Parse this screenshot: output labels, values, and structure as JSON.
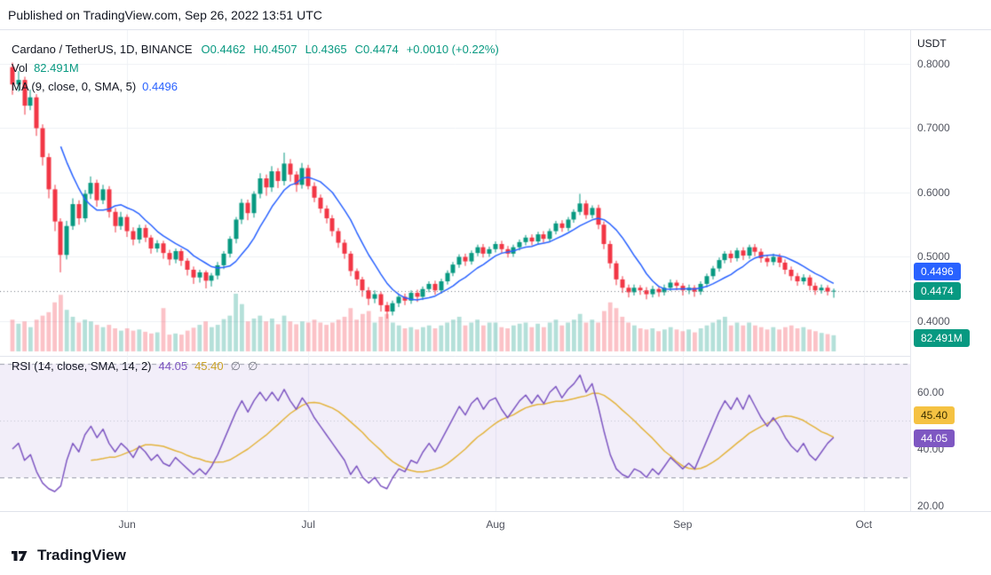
{
  "publish_bar": {
    "text": "Published on TradingView.com, Sep 26, 2022 13:51 UTC"
  },
  "header": {
    "symbol_title": "Cardano / TetherUS, 1D, BINANCE",
    "ohlc": [
      {
        "label": "O",
        "value": "0.4462"
      },
      {
        "label": "H",
        "value": "0.4507"
      },
      {
        "label": "L",
        "value": "0.4365"
      },
      {
        "label": "C",
        "value": "0.4474"
      }
    ],
    "change": "+0.0010 (+0.22%)",
    "volume": {
      "label": "Vol",
      "value": "82.491M"
    },
    "ma": {
      "label": "MA (9, close, 0, SMA, 5)",
      "value": "0.4496"
    }
  },
  "rsi_header": {
    "label": "RSI (14, close, SMA, 14, 2)",
    "value": "44.05",
    "ma_value": "45.40",
    "empty_1": "∅",
    "empty_2": "∅"
  },
  "price_axis": {
    "unit": "USDT",
    "ticks": [
      "0.8000",
      "0.7000",
      "0.6000",
      "0.5000",
      "0.4000"
    ],
    "badges": [
      {
        "name": "ma-price",
        "label": "0.4496",
        "bg": "#2962ff",
        "fg": "#ffffff"
      },
      {
        "name": "last-price",
        "label": "0.4474",
        "bg": "#089981",
        "fg": "#ffffff"
      },
      {
        "name": "volume",
        "label": "82.491M",
        "bg": "#089981",
        "fg": "#ffffff"
      }
    ],
    "rsi_ticks": [
      "60.00",
      "40.00",
      "20.00"
    ],
    "rsi_badges": [
      {
        "name": "rsi-ma",
        "label": "45.40",
        "bg": "#f5c242",
        "fg": "#3b2f00"
      },
      {
        "name": "rsi",
        "label": "44.05",
        "bg": "#7e57c2",
        "fg": "#ffffff"
      }
    ]
  },
  "time_axis": {
    "labels": [
      "Jun",
      "Jul",
      "Aug",
      "Sep",
      "Oct"
    ]
  },
  "footer": {
    "brand": "TradingView"
  },
  "colors": {
    "up": "#089981",
    "down": "#f23645",
    "volume_up": "rgba(8,153,129,0.30)",
    "volume_down": "rgba(242,54,69,0.30)",
    "ma_line": "#2962ff",
    "rsi_line": "#7e57c2",
    "rsi_ma_line": "#e3b33c",
    "rsi_band_fill": "rgba(126,87,194,0.10)",
    "rsi_band_border": "#9b9eab",
    "grid": "#eef0f5",
    "last_price_line": "#787b86",
    "pane_separator": "#e0e3eb"
  },
  "chart_data": {
    "type": "candlestick",
    "title": "Cardano / TetherUS, 1D, BINANCE",
    "ohlc_last": {
      "open": 0.4462,
      "high": 0.4507,
      "low": 0.4365,
      "close": 0.4474,
      "change": "+0.0010 (+0.22%)"
    },
    "volume_last": "82.491M",
    "price_ticks": [
      0.8,
      0.7,
      0.6,
      0.5,
      0.4
    ],
    "last_close": 0.4474,
    "ma_period": 9,
    "ma_last": 0.4496,
    "month_labels": [
      "Jun",
      "Jul",
      "Aug",
      "Sep",
      "Oct"
    ],
    "month_tick_indices": [
      19,
      49,
      80,
      111,
      141
    ],
    "total_slots": 148,
    "candles": [
      [
        0.795,
        0.802,
        0.752,
        0.768
      ],
      [
        0.768,
        0.789,
        0.757,
        0.775
      ],
      [
        0.775,
        0.78,
        0.721,
        0.735
      ],
      [
        0.735,
        0.76,
        0.728,
        0.748
      ],
      [
        0.748,
        0.753,
        0.688,
        0.7
      ],
      [
        0.7,
        0.706,
        0.642,
        0.655
      ],
      [
        0.655,
        0.661,
        0.591,
        0.605
      ],
      [
        0.605,
        0.612,
        0.54,
        0.555
      ],
      [
        0.555,
        0.56,
        0.476,
        0.503
      ],
      [
        0.503,
        0.556,
        0.496,
        0.548
      ],
      [
        0.548,
        0.591,
        0.542,
        0.582
      ],
      [
        0.582,
        0.588,
        0.55,
        0.56
      ],
      [
        0.56,
        0.604,
        0.554,
        0.598
      ],
      [
        0.598,
        0.625,
        0.59,
        0.615
      ],
      [
        0.615,
        0.62,
        0.578,
        0.588
      ],
      [
        0.588,
        0.612,
        0.582,
        0.605
      ],
      [
        0.605,
        0.61,
        0.561,
        0.57
      ],
      [
        0.57,
        0.576,
        0.538,
        0.548
      ],
      [
        0.548,
        0.57,
        0.542,
        0.562
      ],
      [
        0.562,
        0.566,
        0.531,
        0.54
      ],
      [
        0.54,
        0.546,
        0.518,
        0.527
      ],
      [
        0.527,
        0.55,
        0.521,
        0.545
      ],
      [
        0.545,
        0.55,
        0.523,
        0.53
      ],
      [
        0.53,
        0.534,
        0.505,
        0.513
      ],
      [
        0.513,
        0.526,
        0.507,
        0.521
      ],
      [
        0.521,
        0.525,
        0.497,
        0.506
      ],
      [
        0.506,
        0.511,
        0.487,
        0.496
      ],
      [
        0.496,
        0.513,
        0.49,
        0.509
      ],
      [
        0.509,
        0.513,
        0.486,
        0.494
      ],
      [
        0.494,
        0.498,
        0.471,
        0.48
      ],
      [
        0.48,
        0.485,
        0.458,
        0.468
      ],
      [
        0.468,
        0.48,
        0.46,
        0.476
      ],
      [
        0.476,
        0.479,
        0.451,
        0.463
      ],
      [
        0.463,
        0.475,
        0.454,
        0.471
      ],
      [
        0.471,
        0.492,
        0.465,
        0.487
      ],
      [
        0.487,
        0.509,
        0.481,
        0.505
      ],
      [
        0.505,
        0.532,
        0.499,
        0.528
      ],
      [
        0.528,
        0.562,
        0.521,
        0.558
      ],
      [
        0.558,
        0.59,
        0.551,
        0.584
      ],
      [
        0.584,
        0.589,
        0.557,
        0.568
      ],
      [
        0.568,
        0.602,
        0.561,
        0.598
      ],
      [
        0.598,
        0.63,
        0.591,
        0.622
      ],
      [
        0.622,
        0.628,
        0.595,
        0.608
      ],
      [
        0.608,
        0.641,
        0.601,
        0.633
      ],
      [
        0.633,
        0.638,
        0.607,
        0.618
      ],
      [
        0.618,
        0.662,
        0.611,
        0.645
      ],
      [
        0.645,
        0.652,
        0.617,
        0.628
      ],
      [
        0.628,
        0.633,
        0.601,
        0.612
      ],
      [
        0.612,
        0.646,
        0.606,
        0.638
      ],
      [
        0.638,
        0.643,
        0.605,
        0.61
      ],
      [
        0.61,
        0.616,
        0.585,
        0.592
      ],
      [
        0.592,
        0.597,
        0.568,
        0.575
      ],
      [
        0.575,
        0.58,
        0.552,
        0.56
      ],
      [
        0.56,
        0.565,
        0.532,
        0.54
      ],
      [
        0.54,
        0.545,
        0.514,
        0.522
      ],
      [
        0.522,
        0.527,
        0.497,
        0.505
      ],
      [
        0.505,
        0.509,
        0.47,
        0.478
      ],
      [
        0.478,
        0.482,
        0.455,
        0.465
      ],
      [
        0.465,
        0.469,
        0.438,
        0.448
      ],
      [
        0.448,
        0.453,
        0.425,
        0.435
      ],
      [
        0.435,
        0.448,
        0.428,
        0.442
      ],
      [
        0.442,
        0.446,
        0.415,
        0.425
      ],
      [
        0.425,
        0.43,
        0.404,
        0.415
      ],
      [
        0.415,
        0.432,
        0.409,
        0.428
      ],
      [
        0.428,
        0.442,
        0.422,
        0.438
      ],
      [
        0.438,
        0.443,
        0.425,
        0.432
      ],
      [
        0.432,
        0.448,
        0.427,
        0.444
      ],
      [
        0.444,
        0.449,
        0.43,
        0.438
      ],
      [
        0.438,
        0.454,
        0.433,
        0.45
      ],
      [
        0.45,
        0.462,
        0.445,
        0.458
      ],
      [
        0.458,
        0.463,
        0.441,
        0.448
      ],
      [
        0.448,
        0.466,
        0.443,
        0.462
      ],
      [
        0.462,
        0.479,
        0.457,
        0.475
      ],
      [
        0.475,
        0.492,
        0.47,
        0.488
      ],
      [
        0.488,
        0.504,
        0.483,
        0.5
      ],
      [
        0.5,
        0.505,
        0.486,
        0.493
      ],
      [
        0.493,
        0.51,
        0.488,
        0.506
      ],
      [
        0.506,
        0.519,
        0.501,
        0.515
      ],
      [
        0.515,
        0.52,
        0.499,
        0.505
      ],
      [
        0.505,
        0.516,
        0.5,
        0.512
      ],
      [
        0.512,
        0.524,
        0.507,
        0.52
      ],
      [
        0.52,
        0.525,
        0.506,
        0.512
      ],
      [
        0.512,
        0.517,
        0.499,
        0.505
      ],
      [
        0.505,
        0.519,
        0.5,
        0.515
      ],
      [
        0.515,
        0.527,
        0.51,
        0.523
      ],
      [
        0.523,
        0.534,
        0.518,
        0.53
      ],
      [
        0.53,
        0.535,
        0.518,
        0.524
      ],
      [
        0.524,
        0.539,
        0.519,
        0.535
      ],
      [
        0.535,
        0.54,
        0.522,
        0.528
      ],
      [
        0.528,
        0.544,
        0.523,
        0.54
      ],
      [
        0.54,
        0.556,
        0.535,
        0.552
      ],
      [
        0.552,
        0.557,
        0.539,
        0.545
      ],
      [
        0.545,
        0.562,
        0.54,
        0.558
      ],
      [
        0.558,
        0.574,
        0.553,
        0.57
      ],
      [
        0.57,
        0.598,
        0.565,
        0.583
      ],
      [
        0.583,
        0.588,
        0.559,
        0.565
      ],
      [
        0.565,
        0.58,
        0.56,
        0.576
      ],
      [
        0.576,
        0.581,
        0.543,
        0.55
      ],
      [
        0.55,
        0.555,
        0.512,
        0.52
      ],
      [
        0.52,
        0.525,
        0.482,
        0.49
      ],
      [
        0.49,
        0.494,
        0.456,
        0.465
      ],
      [
        0.465,
        0.47,
        0.444,
        0.452
      ],
      [
        0.452,
        0.457,
        0.437,
        0.445
      ],
      [
        0.445,
        0.457,
        0.44,
        0.452
      ],
      [
        0.452,
        0.456,
        0.441,
        0.448
      ],
      [
        0.448,
        0.453,
        0.434,
        0.442
      ],
      [
        0.442,
        0.455,
        0.437,
        0.45
      ],
      [
        0.45,
        0.454,
        0.438,
        0.445
      ],
      [
        0.445,
        0.457,
        0.44,
        0.452
      ],
      [
        0.452,
        0.465,
        0.447,
        0.46
      ],
      [
        0.46,
        0.464,
        0.448,
        0.455
      ],
      [
        0.455,
        0.459,
        0.44,
        0.448
      ],
      [
        0.448,
        0.457,
        0.442,
        0.452
      ],
      [
        0.452,
        0.456,
        0.438,
        0.446
      ],
      [
        0.446,
        0.462,
        0.441,
        0.458
      ],
      [
        0.458,
        0.474,
        0.453,
        0.47
      ],
      [
        0.47,
        0.486,
        0.465,
        0.482
      ],
      [
        0.482,
        0.499,
        0.477,
        0.495
      ],
      [
        0.495,
        0.509,
        0.49,
        0.505
      ],
      [
        0.505,
        0.51,
        0.491,
        0.498
      ],
      [
        0.498,
        0.514,
        0.493,
        0.51
      ],
      [
        0.51,
        0.515,
        0.495,
        0.502
      ],
      [
        0.502,
        0.519,
        0.497,
        0.515
      ],
      [
        0.515,
        0.52,
        0.501,
        0.508
      ],
      [
        0.508,
        0.513,
        0.491,
        0.498
      ],
      [
        0.498,
        0.503,
        0.485,
        0.492
      ],
      [
        0.492,
        0.505,
        0.487,
        0.5
      ],
      [
        0.5,
        0.505,
        0.484,
        0.491
      ],
      [
        0.491,
        0.496,
        0.473,
        0.48
      ],
      [
        0.48,
        0.485,
        0.463,
        0.47
      ],
      [
        0.47,
        0.475,
        0.455,
        0.462
      ],
      [
        0.462,
        0.473,
        0.457,
        0.468
      ],
      [
        0.468,
        0.472,
        0.448,
        0.455
      ],
      [
        0.455,
        0.46,
        0.441,
        0.448
      ],
      [
        0.448,
        0.457,
        0.443,
        0.452
      ],
      [
        0.452,
        0.456,
        0.44,
        0.446
      ],
      [
        0.4462,
        0.4507,
        0.4365,
        0.4474
      ]
    ],
    "volumes": [
      0.55,
      0.48,
      0.52,
      0.42,
      0.55,
      0.62,
      0.68,
      0.85,
      0.98,
      0.72,
      0.6,
      0.5,
      0.55,
      0.52,
      0.46,
      0.42,
      0.46,
      0.4,
      0.36,
      0.4,
      0.36,
      0.38,
      0.34,
      0.31,
      0.33,
      0.75,
      0.29,
      0.31,
      0.29,
      0.36,
      0.41,
      0.46,
      0.52,
      0.42,
      0.46,
      0.56,
      0.62,
      1.0,
      0.82,
      0.52,
      0.57,
      0.62,
      0.52,
      0.57,
      0.47,
      0.62,
      0.52,
      0.47,
      0.52,
      0.5,
      0.55,
      0.5,
      0.46,
      0.5,
      0.55,
      0.6,
      0.75,
      0.55,
      0.65,
      0.7,
      0.5,
      0.6,
      0.65,
      0.5,
      0.45,
      0.4,
      0.42,
      0.38,
      0.42,
      0.45,
      0.4,
      0.45,
      0.5,
      0.55,
      0.6,
      0.45,
      0.5,
      0.55,
      0.45,
      0.5,
      0.5,
      0.42,
      0.4,
      0.45,
      0.48,
      0.5,
      0.42,
      0.48,
      0.42,
      0.5,
      0.55,
      0.45,
      0.5,
      0.55,
      0.65,
      0.5,
      0.55,
      0.5,
      0.7,
      0.85,
      0.75,
      0.6,
      0.5,
      0.45,
      0.4,
      0.38,
      0.4,
      0.35,
      0.38,
      0.42,
      0.38,
      0.35,
      0.38,
      0.33,
      0.4,
      0.45,
      0.5,
      0.55,
      0.6,
      0.45,
      0.5,
      0.45,
      0.5,
      0.45,
      0.42,
      0.38,
      0.42,
      0.38,
      0.42,
      0.45,
      0.4,
      0.42,
      0.38,
      0.35,
      0.32,
      0.3,
      0.28
    ],
    "rsi_axis_ticks": [
      60,
      40,
      20
    ],
    "rsi": {
      "period": 14,
      "sma_period": 14,
      "last": 44.05,
      "sma_last": 45.4,
      "levels": {
        "upper": 70,
        "middle": 50,
        "lower": 30
      },
      "values": [
        40,
        42,
        36,
        38,
        32,
        28,
        26,
        25,
        27,
        36,
        42,
        39,
        45,
        48,
        44,
        47,
        42,
        39,
        42,
        40,
        37,
        41,
        39,
        36,
        38,
        35,
        34,
        37,
        35,
        33,
        31,
        33,
        31,
        34,
        38,
        43,
        48,
        53,
        57,
        53,
        57,
        60,
        57,
        60,
        57,
        61,
        57,
        54,
        58,
        55,
        51,
        48,
        45,
        42,
        39,
        36,
        31,
        34,
        30,
        28,
        30,
        27,
        26,
        30,
        33,
        32,
        36,
        35,
        39,
        42,
        39,
        43,
        47,
        51,
        55,
        52,
        56,
        58,
        54,
        57,
        58,
        54,
        51,
        54,
        57,
        59,
        56,
        59,
        56,
        60,
        62,
        58,
        61,
        63,
        66,
        60,
        63,
        55,
        46,
        38,
        33,
        31,
        30,
        33,
        32,
        30,
        33,
        31,
        34,
        37,
        35,
        33,
        35,
        33,
        38,
        43,
        48,
        53,
        57,
        54,
        58,
        54,
        59,
        55,
        51,
        48,
        51,
        48,
        44,
        41,
        39,
        42,
        38,
        36,
        39,
        42,
        44.05
      ]
    }
  }
}
